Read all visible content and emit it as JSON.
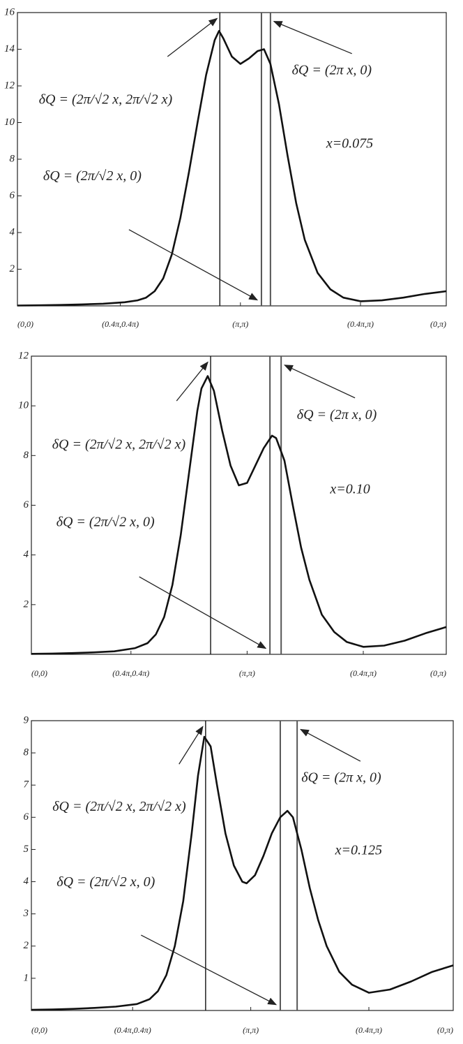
{
  "chart_data": [
    {
      "type": "line",
      "color": "#111111",
      "x": [
        0,
        5,
        10,
        15,
        20,
        25,
        28,
        30,
        32,
        34,
        36,
        38,
        40,
        42,
        44,
        46,
        47,
        48,
        50,
        52,
        54,
        56,
        57.5,
        59,
        61,
        63,
        65,
        67,
        70,
        73,
        76,
        80,
        85,
        90,
        95,
        100
      ],
      "values": [
        0.02,
        0.03,
        0.05,
        0.08,
        0.12,
        0.2,
        0.3,
        0.45,
        0.8,
        1.5,
        2.8,
        4.8,
        7.3,
        10,
        12.6,
        14.5,
        15,
        14.6,
        13.6,
        13.2,
        13.5,
        13.9,
        14,
        13.2,
        11,
        8.2,
        5.6,
        3.6,
        1.8,
        0.9,
        0.45,
        0.25,
        0.3,
        0.45,
        0.65,
        0.8
      ],
      "xlim": [
        0,
        100
      ],
      "xticks": [
        {
          "value": 0,
          "label": "(0,0)"
        },
        {
          "value": 24,
          "label": "(0.4π,0.4π)"
        },
        {
          "value": 52,
          "label": "(π,π)"
        },
        {
          "value": 80,
          "label": "(0.4π,π)"
        },
        {
          "value": 100,
          "label": "(0,π)"
        }
      ],
      "ylim": [
        0,
        16
      ],
      "yticks": [
        2,
        4,
        6,
        8,
        10,
        12,
        14,
        16
      ],
      "vlines": [
        47.2,
        56.9,
        59
      ],
      "annotations": [
        "δQ = (2π/√2 x, 2π/√2 x)",
        "δQ = (2π/√2 x, 0)",
        "δQ = (2π x, 0)",
        "x=0.075"
      ]
    },
    {
      "type": "line",
      "color": "#111111",
      "x": [
        0,
        5,
        10,
        15,
        20,
        25,
        28,
        30,
        32,
        34,
        36,
        38,
        40,
        41,
        42.5,
        44,
        46,
        48,
        50,
        52,
        54,
        56,
        58,
        59,
        61,
        63,
        65,
        67,
        70,
        73,
        76,
        80,
        85,
        90,
        95,
        100
      ],
      "values": [
        0.02,
        0.03,
        0.05,
        0.08,
        0.12,
        0.25,
        0.45,
        0.8,
        1.5,
        2.8,
        4.8,
        7.3,
        9.8,
        10.7,
        11.2,
        10.6,
        9,
        7.6,
        6.8,
        6.9,
        7.6,
        8.3,
        8.8,
        8.7,
        7.8,
        6,
        4.3,
        3,
        1.6,
        0.9,
        0.5,
        0.3,
        0.35,
        0.55,
        0.85,
        1.1
      ],
      "xlim": [
        0,
        100
      ],
      "xticks": [
        {
          "value": 0,
          "label": "(0,0)"
        },
        {
          "value": 24,
          "label": "(0.4π,0.4π)"
        },
        {
          "value": 52,
          "label": "(π,π)"
        },
        {
          "value": 80,
          "label": "(0.4π,π)"
        },
        {
          "value": 100,
          "label": "(0,π)"
        }
      ],
      "ylim": [
        0,
        12
      ],
      "yticks": [
        2,
        4,
        6,
        8,
        10,
        12
      ],
      "vlines": [
        43.2,
        57.5,
        60.2
      ],
      "annotations": [
        "δQ = (2π/√2 x, 2π/√2 x)",
        "δQ = (2π/√2 x, 0)",
        "δQ = (2π x, 0)",
        "x=0.10"
      ]
    },
    {
      "type": "line",
      "color": "#111111",
      "x": [
        0,
        5,
        10,
        15,
        20,
        25,
        28,
        30,
        32,
        34,
        36,
        38,
        39.5,
        41,
        42.5,
        44,
        46,
        48,
        50,
        51,
        53,
        55,
        57,
        59,
        60.7,
        62,
        64,
        66,
        68,
        70,
        73,
        76,
        80,
        85,
        90,
        95,
        100
      ],
      "values": [
        0.02,
        0.03,
        0.05,
        0.08,
        0.12,
        0.2,
        0.35,
        0.6,
        1.1,
        2,
        3.4,
        5.5,
        7.3,
        8.5,
        8.2,
        7,
        5.5,
        4.5,
        4,
        3.95,
        4.2,
        4.8,
        5.5,
        6,
        6.2,
        6,
        5,
        3.8,
        2.8,
        2,
        1.2,
        0.8,
        0.55,
        0.65,
        0.9,
        1.2,
        1.4
      ],
      "xlim": [
        0,
        100
      ],
      "xticks": [
        {
          "value": 0,
          "label": "(0,0)"
        },
        {
          "value": 24,
          "label": "(0.4π,0.4π)"
        },
        {
          "value": 52,
          "label": "(π,π)"
        },
        {
          "value": 80,
          "label": "(0.4π,π)"
        },
        {
          "value": 100,
          "label": "(0,π)"
        }
      ],
      "ylim": [
        0,
        9
      ],
      "yticks": [
        1,
        2,
        3,
        4,
        5,
        6,
        7,
        8,
        9
      ],
      "vlines": [
        41.3,
        59,
        63
      ],
      "annotations": [
        "δQ = (2π/√2 x, 2π/√2 x)",
        "δQ = (2π/√2 x, 0)",
        "δQ = (2π x, 0)",
        "x=0.125"
      ]
    }
  ]
}
